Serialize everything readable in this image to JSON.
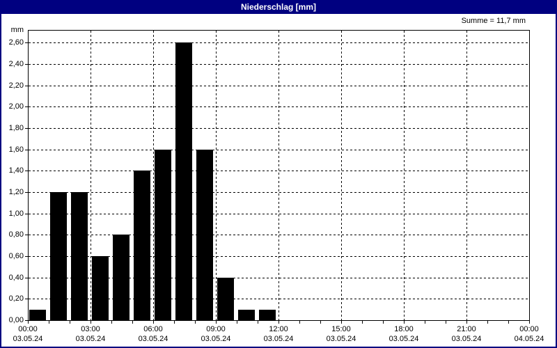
{
  "window": {
    "title": "Niederschlag [mm]"
  },
  "colors": {
    "titlebar_bg": "#000080",
    "titlebar_text": "#ffffff",
    "frame_border": "#000080",
    "plot_border": "#000000",
    "grid": "#000000",
    "bar": "#000000",
    "background": "#ffffff",
    "text": "#000000"
  },
  "chart_data": {
    "type": "bar",
    "title": "Niederschlag [mm]",
    "unit_label": "mm",
    "sum_label": "Summe = 11,7 mm",
    "total_mm": 11.7,
    "grid": "dashed",
    "ylim": [
      0,
      2.72
    ],
    "xlim_hours": [
      0,
      24
    ],
    "bin_hours": 1,
    "bar_color": "#000000",
    "values": [
      0.1,
      1.2,
      1.2,
      0.6,
      0.8,
      1.4,
      1.6,
      2.6,
      1.6,
      0.4,
      0.1,
      0.1
    ],
    "bar_start_hours": [
      0,
      1,
      2,
      3,
      4,
      5,
      6,
      7,
      8,
      9,
      10,
      11
    ],
    "y_ticks": [
      {
        "value": 0.0,
        "label": "0,00"
      },
      {
        "value": 0.2,
        "label": "0,20"
      },
      {
        "value": 0.4,
        "label": "0,40"
      },
      {
        "value": 0.6,
        "label": "0,60"
      },
      {
        "value": 0.8,
        "label": "0,80"
      },
      {
        "value": 1.0,
        "label": "1,00"
      },
      {
        "value": 1.2,
        "label": "1,20"
      },
      {
        "value": 1.4,
        "label": "1,40"
      },
      {
        "value": 1.6,
        "label": "1,60"
      },
      {
        "value": 1.8,
        "label": "1,80"
      },
      {
        "value": 2.0,
        "label": "2,00"
      },
      {
        "value": 2.2,
        "label": "2,20"
      },
      {
        "value": 2.4,
        "label": "2,40"
      },
      {
        "value": 2.6,
        "label": "2,60"
      }
    ],
    "x_ticks": [
      {
        "hour": 0,
        "time": "00:00",
        "date": "03.05.24"
      },
      {
        "hour": 3,
        "time": "03:00",
        "date": "03.05.24"
      },
      {
        "hour": 6,
        "time": "06:00",
        "date": "03.05.24"
      },
      {
        "hour": 9,
        "time": "09:00",
        "date": "03.05.24"
      },
      {
        "hour": 12,
        "time": "12:00",
        "date": "03.05.24"
      },
      {
        "hour": 15,
        "time": "15:00",
        "date": "03.05.24"
      },
      {
        "hour": 18,
        "time": "18:00",
        "date": "03.05.24"
      },
      {
        "hour": 21,
        "time": "21:00",
        "date": "03.05.24"
      },
      {
        "hour": 24,
        "time": "00:00",
        "date": "04.05.24"
      }
    ]
  }
}
